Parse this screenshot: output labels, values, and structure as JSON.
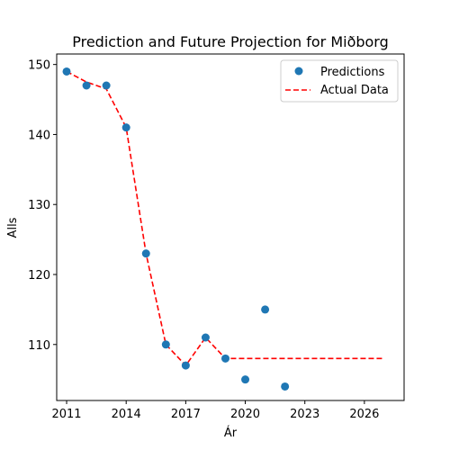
{
  "chart_data": {
    "type": "scatter",
    "title": "Prediction and Future Projection for Miðborg",
    "xlabel": "Ár",
    "ylabel": "Alls",
    "xlim": [
      2010.5,
      2028.0
    ],
    "ylim": [
      102.0,
      151.5
    ],
    "xticks": [
      2011,
      2014,
      2017,
      2020,
      2023,
      2026
    ],
    "yticks": [
      110,
      120,
      130,
      140,
      150
    ],
    "grid": false,
    "legend_position": "top-right",
    "series": [
      {
        "name": "Predictions",
        "kind": "scatter",
        "color": "#1f77b4",
        "x": [
          2011,
          2012,
          2013,
          2014,
          2015,
          2016,
          2017,
          2018,
          2019,
          2020,
          2021,
          2022
        ],
        "y": [
          149,
          147,
          147,
          141,
          123,
          110,
          107,
          111,
          108,
          105,
          115,
          104
        ]
      },
      {
        "name": "Actual Data",
        "kind": "line",
        "style": "dashed",
        "color": "#ff0000",
        "x": [
          2011,
          2012,
          2013,
          2014,
          2015,
          2016,
          2017,
          2018,
          2019,
          2020,
          2021,
          2022,
          2023,
          2024,
          2025,
          2026,
          2027
        ],
        "y": [
          149,
          147.5,
          146.5,
          141,
          123,
          110,
          107,
          111,
          108,
          108,
          108,
          108,
          108,
          108,
          108,
          108,
          108
        ]
      }
    ]
  }
}
